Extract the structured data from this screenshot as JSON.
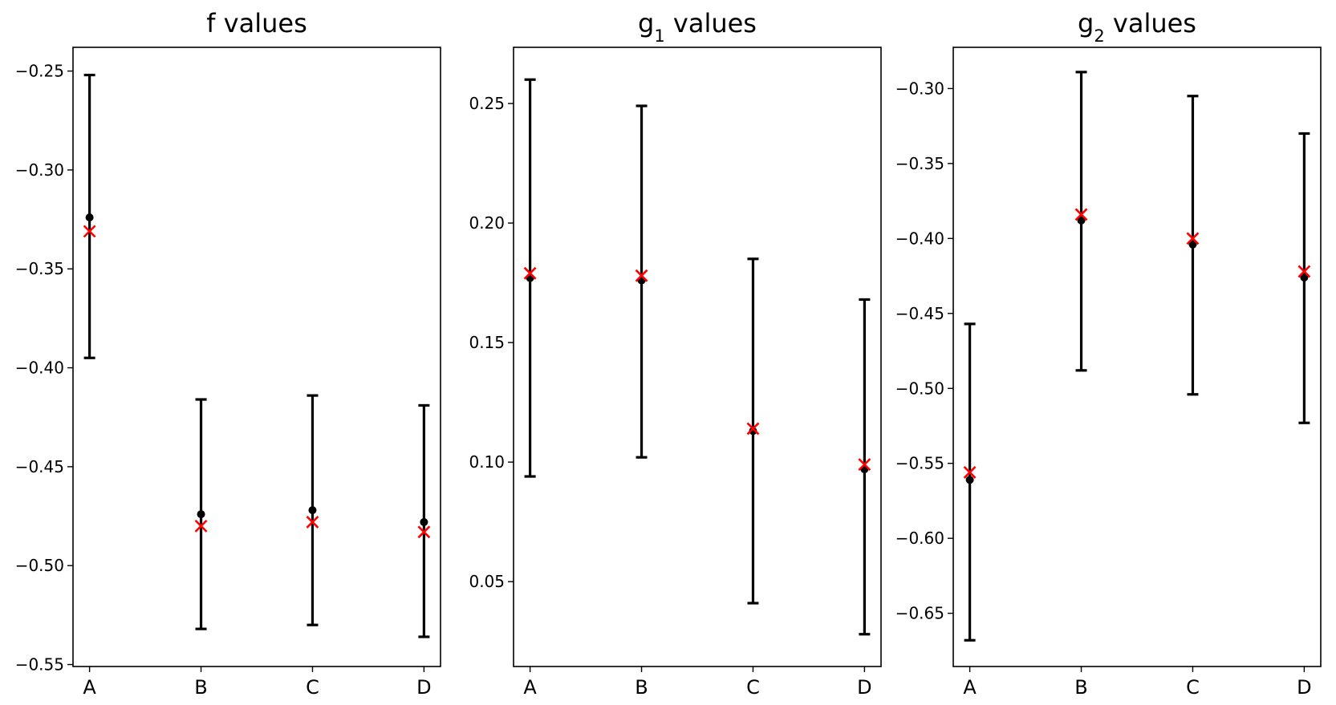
{
  "chart_data": [
    {
      "type": "errorbar",
      "title": "f values",
      "title_main": "f",
      "title_sub": "",
      "title_rest": " values",
      "categories": [
        "A",
        "B",
        "C",
        "D"
      ],
      "mean": [
        -0.324,
        -0.474,
        -0.472,
        -0.478
      ],
      "error_low": [
        -0.395,
        -0.532,
        -0.53,
        -0.536
      ],
      "error_high": [
        -0.252,
        -0.416,
        -0.414,
        -0.419
      ],
      "reference": [
        -0.331,
        -0.48,
        -0.478,
        -0.483
      ],
      "ylim": [
        -0.551,
        -0.238
      ],
      "yticks": [
        -0.25,
        -0.3,
        -0.35,
        -0.4,
        -0.45,
        -0.5,
        -0.55
      ],
      "ytick_labels": [
        "−0.25",
        "−0.30",
        "−0.35",
        "−0.40",
        "−0.45",
        "−0.50",
        "−0.55"
      ],
      "xlabel": "",
      "ylabel": "",
      "grid": false
    },
    {
      "type": "errorbar",
      "title": "g1 values",
      "title_main": "g",
      "title_sub": "1",
      "title_rest": " values",
      "categories": [
        "A",
        "B",
        "C",
        "D"
      ],
      "mean": [
        0.177,
        0.176,
        0.113,
        0.097
      ],
      "error_low": [
        0.094,
        0.102,
        0.041,
        0.028
      ],
      "error_high": [
        0.26,
        0.249,
        0.185,
        0.168
      ],
      "reference": [
        0.179,
        0.178,
        0.114,
        0.099
      ],
      "ylim": [
        0.0145,
        0.2735
      ],
      "yticks": [
        0.05,
        0.1,
        0.15,
        0.2,
        0.25
      ],
      "ytick_labels": [
        "0.05",
        "0.10",
        "0.15",
        "0.20",
        "0.25"
      ],
      "xlabel": "",
      "ylabel": "",
      "grid": false
    },
    {
      "type": "errorbar",
      "title": "g2 values",
      "title_main": "g",
      "title_sub": "2",
      "title_rest": " values",
      "categories": [
        "A",
        "B",
        "C",
        "D"
      ],
      "mean": [
        -0.561,
        -0.388,
        -0.404,
        -0.426
      ],
      "error_low": [
        -0.668,
        -0.488,
        -0.504,
        -0.523
      ],
      "error_high": [
        -0.457,
        -0.289,
        -0.305,
        -0.33
      ],
      "reference": [
        -0.556,
        -0.384,
        -0.4,
        -0.422
      ],
      "ylim": [
        -0.6855,
        -0.2725
      ],
      "yticks": [
        -0.3,
        -0.35,
        -0.4,
        -0.45,
        -0.5,
        -0.55,
        -0.6,
        -0.65
      ],
      "ytick_labels": [
        "−0.30",
        "−0.35",
        "−0.40",
        "−0.45",
        "−0.50",
        "−0.55",
        "−0.60",
        "−0.65"
      ],
      "xlabel": "",
      "ylabel": "",
      "grid": false
    }
  ],
  "style": {
    "errorbar_color": "#000000",
    "mean_marker_color": "#000000",
    "reference_marker_color": "#ff0000",
    "axes_color": "#000000",
    "background": "#ffffff"
  }
}
